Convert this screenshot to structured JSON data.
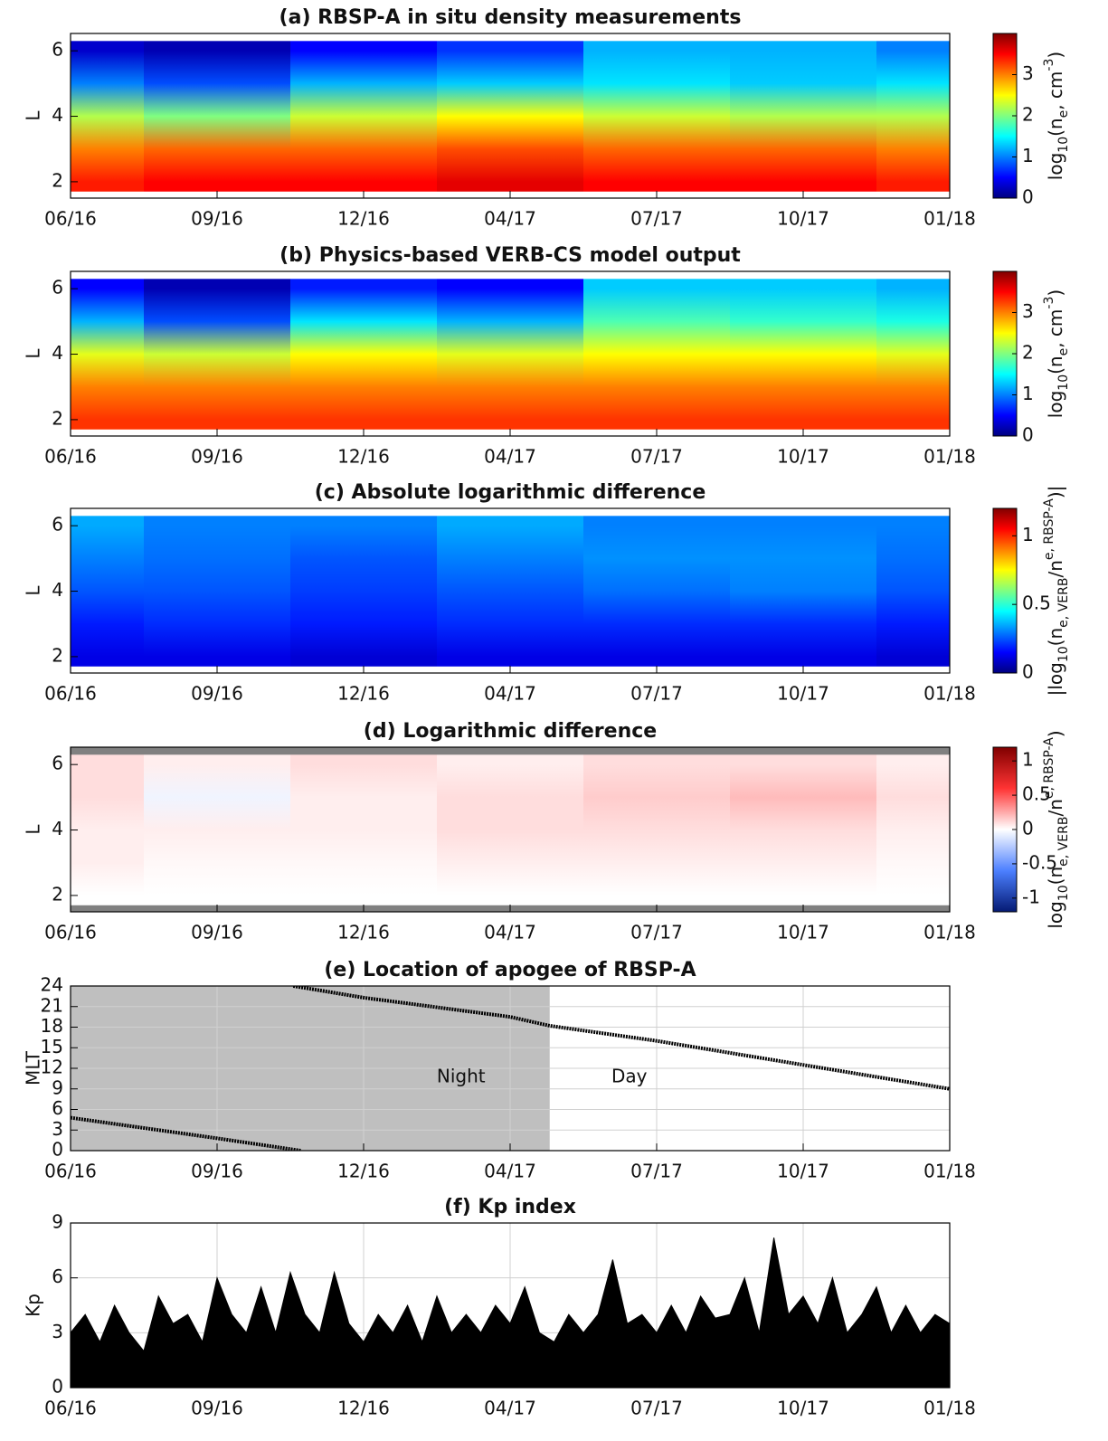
{
  "chart_data": [
    {
      "type": "heatmap",
      "title": "(a) RBSP-A in situ density measurements",
      "ylabel": "L",
      "xlim": [
        0,
        6
      ],
      "xticks": [
        {
          "value": 0,
          "label": "06/16"
        },
        {
          "value": 1,
          "label": "09/16"
        },
        {
          "value": 2,
          "label": "12/16"
        },
        {
          "value": 3,
          "label": "04/17"
        },
        {
          "value": 4,
          "label": "07/17"
        },
        {
          "value": 5,
          "label": "10/17"
        },
        {
          "value": 6,
          "label": "01/18"
        }
      ],
      "ylim": [
        1.5,
        6.53
      ],
      "yticks": [
        2,
        4,
        6
      ],
      "x": [
        0,
        1,
        2,
        3,
        4,
        5,
        6
      ],
      "y": [
        2,
        3,
        4,
        5,
        6
      ],
      "z": [
        [
          3.4,
          3.0,
          2.2,
          1.0,
          0.3
        ],
        [
          3.5,
          3.1,
          2.0,
          0.8,
          0.2
        ],
        [
          3.5,
          3.1,
          2.3,
          1.2,
          0.5
        ],
        [
          3.6,
          3.2,
          2.5,
          1.3,
          0.7
        ],
        [
          3.5,
          3.1,
          2.3,
          1.4,
          1.2
        ],
        [
          3.5,
          3.1,
          2.2,
          1.3,
          1.2
        ],
        [
          3.4,
          3.0,
          2.2,
          1.4,
          1.0
        ]
      ],
      "colormap": "jet",
      "clim": [
        0,
        4
      ],
      "cticks": [
        0,
        1,
        2,
        3
      ],
      "clabel": [
        "log",
        "10",
        "(n",
        "e",
        ", cm",
        "-3",
        ")"
      ]
    },
    {
      "type": "heatmap",
      "title": "(b) Physics-based VERB-CS model output",
      "ylabel": "L",
      "xlim": [
        0,
        6
      ],
      "xticks": [
        {
          "value": 0,
          "label": "06/16"
        },
        {
          "value": 1,
          "label": "09/16"
        },
        {
          "value": 2,
          "label": "12/16"
        },
        {
          "value": 3,
          "label": "04/17"
        },
        {
          "value": 4,
          "label": "07/17"
        },
        {
          "value": 5,
          "label": "10/17"
        },
        {
          "value": 6,
          "label": "01/18"
        }
      ],
      "ylim": [
        1.5,
        6.53
      ],
      "yticks": [
        2,
        4,
        6
      ],
      "x": [
        0,
        1,
        2,
        3,
        4,
        5,
        6
      ],
      "y": [
        2,
        3,
        4,
        5,
        6
      ],
      "z": [
        [
          3.3,
          3.0,
          2.4,
          1.2,
          0.5
        ],
        [
          3.3,
          3.0,
          2.3,
          0.8,
          0.2
        ],
        [
          3.3,
          3.0,
          2.5,
          1.4,
          0.6
        ],
        [
          3.3,
          3.0,
          2.4,
          1.2,
          0.5
        ],
        [
          3.3,
          3.0,
          2.5,
          1.8,
          1.3
        ],
        [
          3.3,
          3.0,
          2.5,
          1.7,
          1.3
        ],
        [
          3.3,
          3.0,
          2.4,
          1.6,
          1.2
        ]
      ],
      "colormap": "jet",
      "clim": [
        0,
        4
      ],
      "cticks": [
        0,
        1,
        2,
        3
      ],
      "clabel": [
        "log",
        "10",
        "(n",
        "e",
        ", cm",
        "-3",
        ")"
      ]
    },
    {
      "type": "heatmap",
      "title": "(c) Absolute logarithmic difference",
      "ylabel": "L",
      "xlim": [
        0,
        6
      ],
      "xticks": [
        {
          "value": 0,
          "label": "06/16"
        },
        {
          "value": 1,
          "label": "09/16"
        },
        {
          "value": 2,
          "label": "12/16"
        },
        {
          "value": 3,
          "label": "04/17"
        },
        {
          "value": 4,
          "label": "07/17"
        },
        {
          "value": 5,
          "label": "10/17"
        },
        {
          "value": 6,
          "label": "01/18"
        }
      ],
      "ylim": [
        1.5,
        6.53
      ],
      "yticks": [
        2,
        4,
        6
      ],
      "x": [
        0,
        1,
        2,
        3,
        4,
        5,
        6
      ],
      "y": [
        2,
        3,
        4,
        5,
        6
      ],
      "z": [
        [
          0.12,
          0.18,
          0.25,
          0.3,
          0.35
        ],
        [
          0.12,
          0.2,
          0.25,
          0.28,
          0.3
        ],
        [
          0.1,
          0.18,
          0.22,
          0.25,
          0.3
        ],
        [
          0.12,
          0.2,
          0.25,
          0.3,
          0.35
        ],
        [
          0.12,
          0.2,
          0.28,
          0.32,
          0.3
        ],
        [
          0.12,
          0.2,
          0.3,
          0.32,
          0.3
        ],
        [
          0.1,
          0.18,
          0.25,
          0.28,
          0.3
        ]
      ],
      "colormap": "jet",
      "clim": [
        0,
        1.2
      ],
      "cticks": [
        0,
        0.5,
        1
      ],
      "clabel": [
        "|log",
        "10",
        "(n",
        "e, VERB",
        "/n",
        "e, RBSP-A",
        ")|"
      ]
    },
    {
      "type": "heatmap",
      "title": "(d) Logarithmic difference",
      "ylabel": "L",
      "xlim": [
        0,
        6
      ],
      "xticks": [
        {
          "value": 0,
          "label": "06/16"
        },
        {
          "value": 1,
          "label": "09/16"
        },
        {
          "value": 2,
          "label": "12/16"
        },
        {
          "value": 3,
          "label": "04/17"
        },
        {
          "value": 4,
          "label": "07/17"
        },
        {
          "value": 5,
          "label": "10/17"
        },
        {
          "value": 6,
          "label": "01/18"
        }
      ],
      "ylim": [
        1.5,
        6.53
      ],
      "yticks": [
        2,
        4,
        6
      ],
      "x": [
        0,
        1,
        2,
        3,
        4,
        5,
        6
      ],
      "y": [
        2,
        3,
        4,
        5,
        6
      ],
      "z": [
        [
          0,
          0.05,
          0.05,
          0.1,
          0.1
        ],
        [
          0,
          0.02,
          0.05,
          -0.05,
          0.05
        ],
        [
          0,
          0.02,
          0.05,
          0.05,
          0.1
        ],
        [
          0,
          0.05,
          0.1,
          0.1,
          0.05
        ],
        [
          0,
          0.05,
          0.1,
          0.15,
          0.1
        ],
        [
          0,
          0.05,
          0.1,
          0.2,
          0.1
        ],
        [
          0,
          0.02,
          0.05,
          0.1,
          0.05
        ]
      ],
      "colormap": "bwr",
      "clim": [
        -1.2,
        1.2
      ],
      "cticks": [
        -1,
        -0.5,
        0,
        0.5,
        1
      ],
      "background": "#808080",
      "clabel": [
        "log",
        "10",
        "(n",
        "e, VERB",
        "/n",
        "e, RBSP-A",
        ")"
      ]
    },
    {
      "type": "line",
      "title": "(e) Location of apogee of RBSP-A",
      "ylabel": "MLT",
      "xlim": [
        0,
        6
      ],
      "xticks": [
        {
          "value": 0,
          "label": "06/16"
        },
        {
          "value": 1,
          "label": "09/16"
        },
        {
          "value": 2,
          "label": "12/16"
        },
        {
          "value": 3,
          "label": "04/17"
        },
        {
          "value": 4,
          "label": "07/17"
        },
        {
          "value": 5,
          "label": "10/17"
        },
        {
          "value": 6,
          "label": "01/18"
        }
      ],
      "ylim": [
        0,
        24
      ],
      "yticks": [
        0,
        3,
        6,
        9,
        12,
        15,
        18,
        21,
        24
      ],
      "grid": true,
      "night_region": [
        0,
        3.27
      ],
      "annotations": [
        "Night",
        "Day"
      ],
      "x": [
        0,
        0.5,
        1,
        1.57,
        null,
        1.52,
        2,
        3,
        3.27,
        4,
        5,
        6
      ],
      "values": [
        4.8,
        3.3,
        1.8,
        0,
        null,
        24,
        22.3,
        19.5,
        18.2,
        16,
        12.5,
        9
      ],
      "color": "#000000"
    },
    {
      "type": "area",
      "title": "(f) Kp index",
      "ylabel": "Kp",
      "xlim": [
        0,
        6
      ],
      "xticks": [
        {
          "value": 0,
          "label": "06/16"
        },
        {
          "value": 1,
          "label": "09/16"
        },
        {
          "value": 2,
          "label": "12/16"
        },
        {
          "value": 3,
          "label": "04/17"
        },
        {
          "value": 4,
          "label": "07/17"
        },
        {
          "value": 5,
          "label": "10/17"
        },
        {
          "value": 6,
          "label": "01/18"
        }
      ],
      "ylim": [
        0,
        9
      ],
      "yticks": [
        0,
        3,
        6,
        9
      ],
      "grid": true,
      "color": "#000000",
      "x": [
        0,
        0.1,
        0.2,
        0.3,
        0.4,
        0.5,
        0.6,
        0.7,
        0.8,
        0.9,
        1,
        1.1,
        1.2,
        1.3,
        1.4,
        1.5,
        1.6,
        1.7,
        1.8,
        1.9,
        2,
        2.1,
        2.2,
        2.3,
        2.4,
        2.5,
        2.6,
        2.7,
        2.8,
        2.9,
        3,
        3.1,
        3.2,
        3.3,
        3.4,
        3.5,
        3.6,
        3.7,
        3.8,
        3.9,
        4,
        4.1,
        4.2,
        4.3,
        4.4,
        4.5,
        4.6,
        4.7,
        4.8,
        4.9,
        5,
        5.1,
        5.2,
        5.3,
        5.4,
        5.5,
        5.6,
        5.7,
        5.8,
        5.9,
        6
      ],
      "values": [
        3,
        4,
        2.5,
        4.5,
        3,
        2,
        5,
        3.5,
        4,
        2.5,
        6,
        4,
        3,
        5.5,
        3,
        6.3,
        4,
        3,
        6.3,
        3.5,
        2.5,
        4,
        3,
        4.5,
        2.5,
        5,
        3,
        4,
        3,
        4.5,
        3.5,
        5.5,
        3,
        2.5,
        4,
        3,
        4,
        7,
        3.5,
        4,
        3,
        4.5,
        3,
        5,
        3.8,
        4,
        6,
        3,
        8.2,
        4,
        5,
        3.5,
        6,
        3,
        4,
        5.5,
        3,
        4.5,
        3,
        4,
        3.5
      ]
    }
  ]
}
